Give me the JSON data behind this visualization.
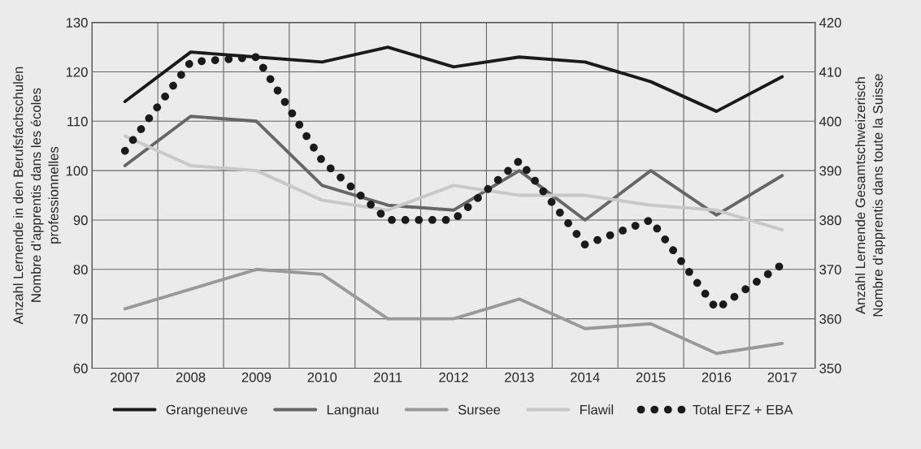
{
  "chart_data": {
    "type": "line",
    "categories": [
      "2007",
      "2008",
      "2009",
      "2010",
      "2011",
      "2012",
      "2013",
      "2014",
      "2015",
      "2016",
      "2017"
    ],
    "ylabel": "Anzahl Lernende in den Berufsfachschulen\nNombre d’apprentis dans les écoles\nprofessionnelles",
    "y2label": "Anzahl Lernende Gesamtschweizerisch\nNombre d’apprentis dans toute la Suisse",
    "ylim": [
      60,
      130
    ],
    "yticks": [
      60,
      70,
      80,
      90,
      100,
      110,
      120,
      130
    ],
    "y2lim": [
      350,
      420
    ],
    "y2ticks": [
      350,
      360,
      370,
      380,
      390,
      400,
      410,
      420
    ],
    "grid": true,
    "legend": "bottom",
    "series": [
      {
        "name": "Grangeneuve",
        "color": "#1a1a1a",
        "values": [
          114,
          124,
          123,
          122,
          125,
          121,
          123,
          122,
          118,
          112,
          119
        ]
      },
      {
        "name": "Langnau",
        "color": "#666666",
        "values": [
          101,
          111,
          110,
          97,
          93,
          92,
          100,
          90,
          100,
          91,
          99
        ]
      },
      {
        "name": "Sursee",
        "color": "#999999",
        "values": [
          72,
          76,
          80,
          79,
          70,
          70,
          74,
          68,
          69,
          63,
          65
        ]
      },
      {
        "name": "Flawil",
        "color": "#c8c8c8",
        "values": [
          107,
          101,
          100,
          94,
          92,
          97,
          95,
          95,
          93,
          92,
          88
        ]
      },
      {
        "name": "Total EFZ + EBA",
        "color": "#1a1a1a",
        "axis": "y2",
        "line_style": "dotted",
        "values": [
          394,
          412,
          413,
          392,
          380,
          380,
          392,
          375,
          380,
          362,
          371
        ]
      }
    ]
  }
}
